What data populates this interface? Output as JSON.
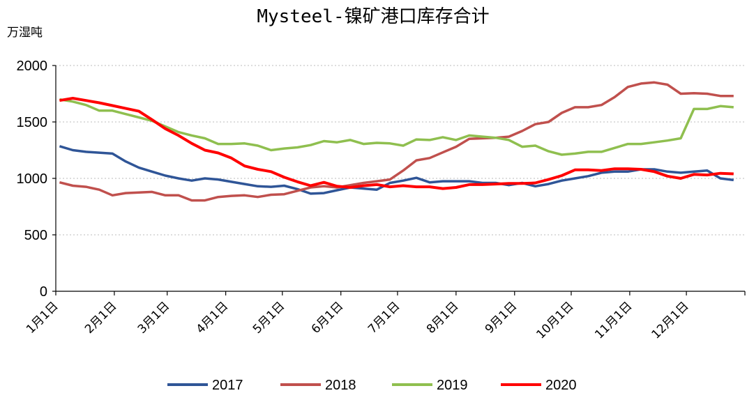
{
  "chart_data": {
    "type": "line",
    "title": "Mysteel-镍矿港口库存合计",
    "y_label": "万湿吨",
    "x": [
      3,
      10,
      17,
      24,
      31,
      38,
      45,
      52,
      59,
      66,
      73,
      80,
      87,
      94,
      101,
      108,
      115,
      122,
      129,
      136,
      143,
      150,
      157,
      164,
      171,
      178,
      185,
      192,
      199,
      206,
      213,
      220,
      227,
      234,
      241,
      248,
      255,
      262,
      269,
      276,
      283,
      290,
      297,
      304,
      311,
      318,
      325,
      332,
      339,
      346,
      353,
      360
    ],
    "xlim": [
      1,
      366
    ],
    "xticks": [
      {
        "value": 1,
        "label": "1月1日"
      },
      {
        "value": 32,
        "label": "2月1日"
      },
      {
        "value": 60,
        "label": "3月1日"
      },
      {
        "value": 91,
        "label": "4月1日"
      },
      {
        "value": 121,
        "label": "5月1日"
      },
      {
        "value": 152,
        "label": "6月1日"
      },
      {
        "value": 182,
        "label": "7月1日"
      },
      {
        "value": 213,
        "label": "8月1日"
      },
      {
        "value": 244,
        "label": "9月1日"
      },
      {
        "value": 274,
        "label": "10月1日"
      },
      {
        "value": 305,
        "label": "11月1日"
      },
      {
        "value": 335,
        "label": "12月1日"
      }
    ],
    "ylim": [
      0,
      2000
    ],
    "yticks": [
      0,
      500,
      1000,
      1500,
      2000
    ],
    "grid": true,
    "legend": "bottom",
    "series": [
      {
        "name": "2017",
        "color": "#2f5597",
        "values": [
          1285,
          1250,
          1235,
          1228,
          1220,
          1150,
          1095,
          1060,
          1025,
          1000,
          980,
          1000,
          990,
          970,
          950,
          930,
          925,
          935,
          905,
          865,
          870,
          895,
          920,
          910,
          900,
          960,
          980,
          1005,
          965,
          975,
          975,
          975,
          960,
          960,
          940,
          960,
          930,
          950,
          980,
          1000,
          1020,
          1050,
          1060,
          1060,
          1080,
          1080,
          1060,
          1050,
          1060,
          1070,
          1000,
          985
        ]
      },
      {
        "name": "2018",
        "color": "#c0504d",
        "values": [
          965,
          935,
          925,
          900,
          850,
          870,
          875,
          880,
          850,
          850,
          805,
          805,
          835,
          845,
          850,
          835,
          855,
          860,
          890,
          920,
          930,
          920,
          940,
          960,
          975,
          990,
          1070,
          1160,
          1180,
          1230,
          1280,
          1350,
          1355,
          1360,
          1370,
          1420,
          1480,
          1500,
          1580,
          1630,
          1630,
          1650,
          1720,
          1810,
          1840,
          1850,
          1830,
          1750,
          1755,
          1750,
          1730,
          1730
        ]
      },
      {
        "name": "2019",
        "color": "#8fbf4f",
        "values": [
          1700,
          1680,
          1650,
          1600,
          1600,
          1570,
          1540,
          1510,
          1460,
          1410,
          1380,
          1355,
          1305,
          1305,
          1310,
          1290,
          1250,
          1265,
          1275,
          1295,
          1330,
          1320,
          1340,
          1305,
          1315,
          1310,
          1290,
          1345,
          1340,
          1365,
          1340,
          1380,
          1370,
          1360,
          1340,
          1280,
          1290,
          1240,
          1210,
          1220,
          1235,
          1235,
          1270,
          1305,
          1305,
          1320,
          1335,
          1355,
          1615,
          1615,
          1640,
          1630
        ]
      },
      {
        "name": "2020",
        "color": "#ff0000",
        "values": [
          1690,
          1710,
          1690,
          1670,
          1645,
          1620,
          1595,
          1520,
          1440,
          1380,
          1310,
          1250,
          1225,
          1180,
          1110,
          1080,
          1060,
          1010,
          970,
          935,
          965,
          930,
          920,
          935,
          945,
          925,
          935,
          925,
          925,
          910,
          920,
          945,
          945,
          950,
          955,
          955,
          960,
          990,
          1025,
          1075,
          1075,
          1070,
          1085,
          1085,
          1080,
          1060,
          1020,
          1000,
          1035,
          1030,
          1045,
          1040
        ]
      }
    ]
  }
}
